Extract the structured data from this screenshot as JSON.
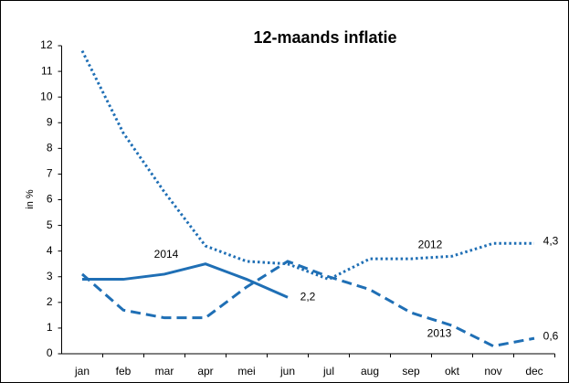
{
  "chart_data": {
    "type": "line",
    "title": "12-maands inflatie",
    "y_label": "in %",
    "categories": [
      "jan",
      "feb",
      "mar",
      "apr",
      "mei",
      "jun",
      "jul",
      "aug",
      "sep",
      "okt",
      "nov",
      "dec"
    ],
    "ylim": [
      0,
      12
    ],
    "yticks": [
      0,
      1,
      2,
      3,
      4,
      5,
      6,
      7,
      8,
      9,
      10,
      11,
      12
    ],
    "grid": false,
    "series": [
      {
        "name": "2012",
        "color": "#1f6fb5",
        "style": "dotted",
        "values": [
          11.8,
          8.6,
          6.3,
          4.2,
          3.6,
          3.5,
          2.9,
          3.7,
          3.7,
          3.8,
          4.3,
          4.3
        ],
        "value_labels": [
          null,
          null,
          null,
          null,
          null,
          null,
          null,
          null,
          null,
          null,
          null,
          "4,3"
        ]
      },
      {
        "name": "2013",
        "color": "#1f6fb5",
        "style": "dashed",
        "values": [
          3.1,
          1.7,
          1.4,
          1.4,
          2.6,
          3.6,
          3.0,
          2.5,
          1.6,
          1.1,
          0.3,
          0.6
        ],
        "value_labels": [
          null,
          null,
          null,
          null,
          null,
          null,
          null,
          null,
          null,
          null,
          null,
          "0,6"
        ]
      },
      {
        "name": "2014",
        "color": "#1f6fb5",
        "style": "solid",
        "values": [
          2.9,
          2.9,
          3.1,
          3.5,
          2.9,
          2.2,
          null,
          null,
          null,
          null,
          null,
          null
        ],
        "value_labels": [
          null,
          null,
          null,
          null,
          null,
          "2,2",
          null,
          null,
          null,
          null,
          null,
          null
        ]
      }
    ]
  }
}
